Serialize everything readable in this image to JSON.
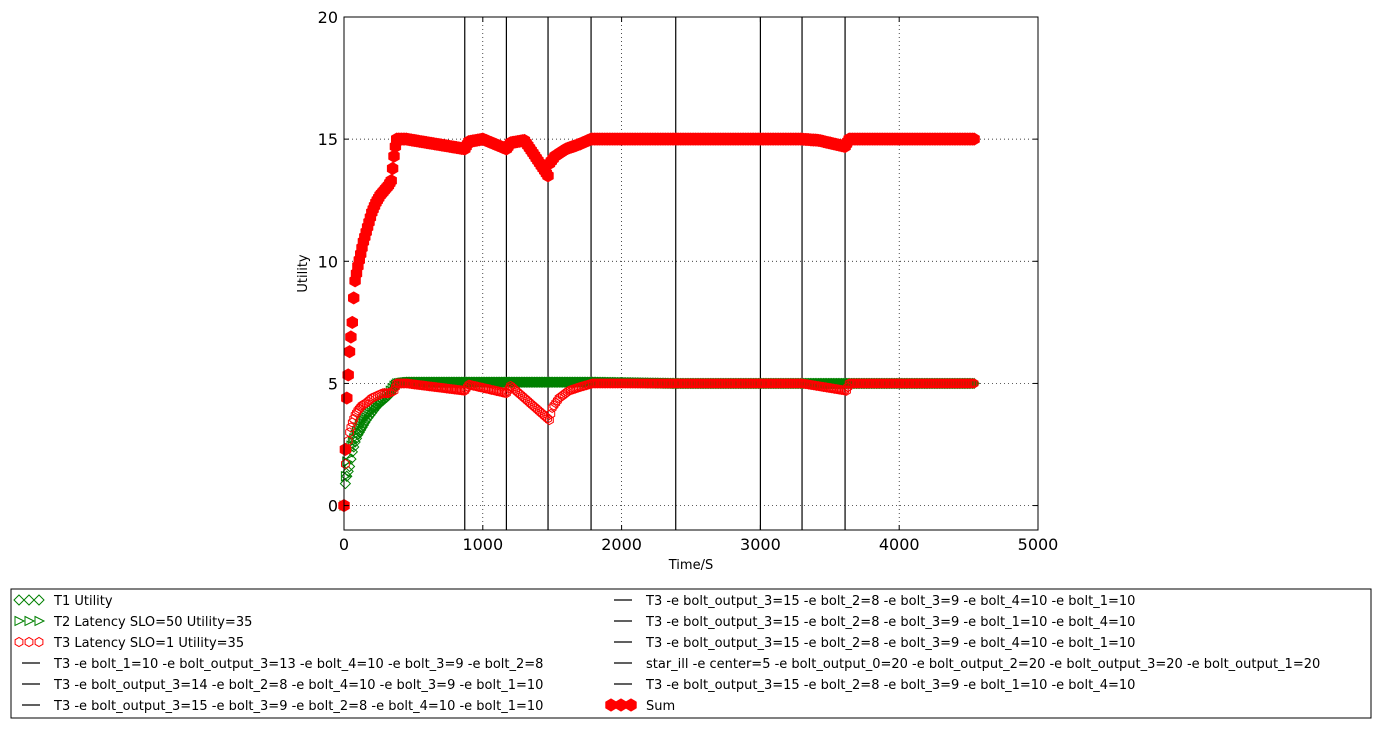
{
  "chart_data": {
    "type": "scatter",
    "title": "",
    "xlabel": "Time/S",
    "ylabel": "Utility",
    "xlim": [
      0,
      5000
    ],
    "ylim": [
      -1,
      20
    ],
    "xticks": [
      "0",
      "1000",
      "2000",
      "3000",
      "4000",
      "5000"
    ],
    "yticks": [
      "0",
      "5",
      "10",
      "15",
      "20"
    ],
    "grid": true,
    "legend_position": "bottom",
    "colors": {
      "t1": "#008000",
      "t2": "#008000",
      "t3": "#ff0000",
      "sum": "#ff0000",
      "vline": "#000000"
    },
    "series": [
      {
        "name": "T1 Utility",
        "marker": "diamond-open",
        "color": "#008000",
        "points": [
          [
            0,
            0.0
          ],
          [
            10,
            0.9
          ],
          [
            20,
            1.2
          ],
          [
            40,
            1.6
          ],
          [
            60,
            2.2
          ],
          [
            80,
            2.6
          ],
          [
            100,
            2.9
          ],
          [
            130,
            3.2
          ],
          [
            160,
            3.5
          ],
          [
            200,
            3.8
          ],
          [
            240,
            4.1
          ],
          [
            280,
            4.3
          ],
          [
            320,
            4.5
          ],
          [
            360,
            4.8
          ],
          [
            380,
            5.0
          ],
          [
            450,
            5.05
          ],
          [
            870,
            5.05
          ],
          [
            1170,
            5.05
          ],
          [
            1480,
            5.05
          ],
          [
            1790,
            5.05
          ],
          [
            2400,
            5.0
          ],
          [
            3010,
            5.0
          ],
          [
            3300,
            5.0
          ],
          [
            3620,
            5.0
          ],
          [
            4540,
            5.0
          ]
        ]
      },
      {
        "name": "T2 Latency SLO=50 Utility=35",
        "marker": "triangle-right-open",
        "color": "#008000",
        "points": [
          [
            0,
            0.0
          ],
          [
            10,
            1.2
          ],
          [
            20,
            1.8
          ],
          [
            40,
            2.3
          ],
          [
            60,
            2.6
          ],
          [
            80,
            2.9
          ],
          [
            100,
            3.2
          ],
          [
            130,
            3.5
          ],
          [
            160,
            3.7
          ],
          [
            200,
            3.9
          ],
          [
            240,
            4.1
          ],
          [
            280,
            4.3
          ],
          [
            320,
            4.6
          ],
          [
            360,
            4.9
          ],
          [
            380,
            5.0
          ],
          [
            450,
            5.05
          ],
          [
            870,
            5.05
          ],
          [
            1170,
            5.05
          ],
          [
            1480,
            5.05
          ],
          [
            1790,
            5.05
          ],
          [
            2400,
            5.0
          ],
          [
            3010,
            5.0
          ],
          [
            3300,
            5.0
          ],
          [
            3620,
            5.0
          ],
          [
            4540,
            5.0
          ]
        ]
      },
      {
        "name": "T3 Latency SLO=1 Utility=35",
        "marker": "hexagon-open",
        "color": "#ff0000",
        "points": [
          [
            0,
            0.0
          ],
          [
            10,
            1.7
          ],
          [
            20,
            2.3
          ],
          [
            40,
            3.0
          ],
          [
            60,
            3.4
          ],
          [
            80,
            3.7
          ],
          [
            100,
            3.9
          ],
          [
            130,
            4.1
          ],
          [
            160,
            4.2
          ],
          [
            200,
            4.4
          ],
          [
            240,
            4.5
          ],
          [
            280,
            4.6
          ],
          [
            320,
            4.6
          ],
          [
            360,
            4.7
          ],
          [
            380,
            5.0
          ],
          [
            450,
            5.0
          ],
          [
            870,
            4.7
          ],
          [
            900,
            4.95
          ],
          [
            1170,
            4.6
          ],
          [
            1200,
            4.9
          ],
          [
            1480,
            3.5
          ],
          [
            1500,
            4.0
          ],
          [
            1550,
            4.4
          ],
          [
            1620,
            4.7
          ],
          [
            1700,
            4.85
          ],
          [
            1790,
            5.0
          ],
          [
            2400,
            5.0
          ],
          [
            3010,
            5.0
          ],
          [
            3300,
            5.0
          ],
          [
            3620,
            4.7
          ],
          [
            3640,
            5.0
          ],
          [
            4540,
            5.0
          ]
        ]
      },
      {
        "name": "T3 -e bolt_1=10 -e bolt_output_3=13 -e bolt_4=10 -e bolt_3=9 -e bolt_2=8",
        "marker": "line",
        "color": "#000000",
        "vline": 870
      },
      {
        "name": "T3 -e bolt_output_3=14 -e bolt_2=8 -e bolt_4=10 -e bolt_3=9 -e bolt_1=10",
        "marker": "line",
        "color": "#000000",
        "vline": 1170
      },
      {
        "name": "T3 -e bolt_output_3=15 -e bolt_3=9 -e bolt_2=8 -e bolt_4=10 -e bolt_1=10",
        "marker": "line",
        "color": "#000000",
        "vline": 1470
      },
      {
        "name": "T3 -e bolt_output_3=15 -e bolt_2=8 -e bolt_3=9 -e bolt_4=10 -e bolt_1=10",
        "marker": "line",
        "color": "#000000",
        "vline": 1780
      },
      {
        "name": "T3 -e bolt_output_3=15 -e bolt_2=8 -e bolt_3=9 -e bolt_1=10 -e bolt_4=10",
        "marker": "line",
        "color": "#000000",
        "vline": 2390
      },
      {
        "name": "T3 -e bolt_output_3=15 -e bolt_2=8 -e bolt_3=9 -e bolt_4=10 -e bolt_1=10",
        "marker": "line",
        "color": "#000000",
        "vline": 3000
      },
      {
        "name": "star_ill -e center=5 -e bolt_output_0=20 -e bolt_output_2=20 -e bolt_output_3=20 -e bolt_output_1=20",
        "marker": "line",
        "color": "#000000",
        "vline": 3300
      },
      {
        "name": "T3 -e bolt_output_3=15 -e bolt_2=8 -e bolt_3=9 -e bolt_1=10 -e bolt_4=10",
        "marker": "line",
        "color": "#000000",
        "vline": 3610
      },
      {
        "name": "Sum",
        "marker": "hexagon-filled",
        "color": "#ff0000",
        "points": [
          [
            0,
            0.0
          ],
          [
            10,
            2.3
          ],
          [
            20,
            4.4
          ],
          [
            40,
            6.3
          ],
          [
            60,
            7.5
          ],
          [
            70,
            8.5
          ],
          [
            80,
            9.2
          ],
          [
            100,
            9.8
          ],
          [
            120,
            10.3
          ],
          [
            140,
            10.8
          ],
          [
            160,
            11.2
          ],
          [
            180,
            11.6
          ],
          [
            200,
            12.0
          ],
          [
            230,
            12.4
          ],
          [
            260,
            12.7
          ],
          [
            290,
            12.9
          ],
          [
            320,
            13.1
          ],
          [
            340,
            13.3
          ],
          [
            350,
            13.8
          ],
          [
            360,
            14.3
          ],
          [
            370,
            14.7
          ],
          [
            380,
            15.0
          ],
          [
            450,
            15.0
          ],
          [
            870,
            14.6
          ],
          [
            900,
            14.9
          ],
          [
            1000,
            15.0
          ],
          [
            1170,
            14.6
          ],
          [
            1200,
            14.85
          ],
          [
            1300,
            14.95
          ],
          [
            1470,
            13.5
          ],
          [
            1480,
            14.0
          ],
          [
            1520,
            14.3
          ],
          [
            1600,
            14.6
          ],
          [
            1700,
            14.8
          ],
          [
            1780,
            15.0
          ],
          [
            2400,
            15.0
          ],
          [
            3000,
            15.0
          ],
          [
            3300,
            15.0
          ],
          [
            3420,
            14.95
          ],
          [
            3610,
            14.7
          ],
          [
            3640,
            15.0
          ],
          [
            4540,
            15.0
          ]
        ]
      }
    ]
  }
}
